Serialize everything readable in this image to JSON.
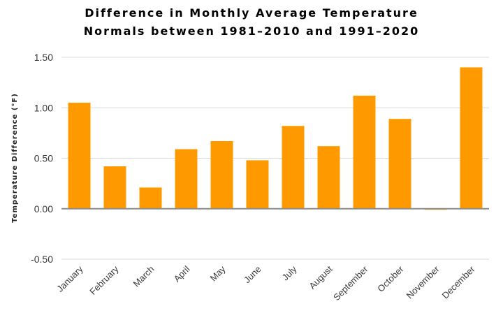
{
  "chart_data": {
    "type": "bar",
    "title_lines": [
      "Difference in Monthly Average Temperature",
      "Normals between 1981–2010 and 1991–2020"
    ],
    "xlabel": "",
    "ylabel": "Temperature Difference (°F)",
    "categories": [
      "January",
      "February",
      "March",
      "April",
      "May",
      "June",
      "July",
      "August",
      "September",
      "October",
      "November",
      "December"
    ],
    "values": [
      1.05,
      0.42,
      0.21,
      0.59,
      0.67,
      0.48,
      0.82,
      0.62,
      1.12,
      0.89,
      -0.01,
      1.4
    ],
    "ylim": [
      -0.5,
      1.5
    ],
    "yticks": [
      -0.5,
      0.0,
      0.5,
      1.0,
      1.5
    ],
    "ytick_labels": [
      "-0.50",
      "0.00",
      "0.50",
      "1.00",
      "1.50"
    ],
    "grid": true,
    "legend": "none",
    "colors": {
      "bar": "#ff9900",
      "grid": "#d9d9d9",
      "zero_line": "#8c8c8c"
    }
  }
}
